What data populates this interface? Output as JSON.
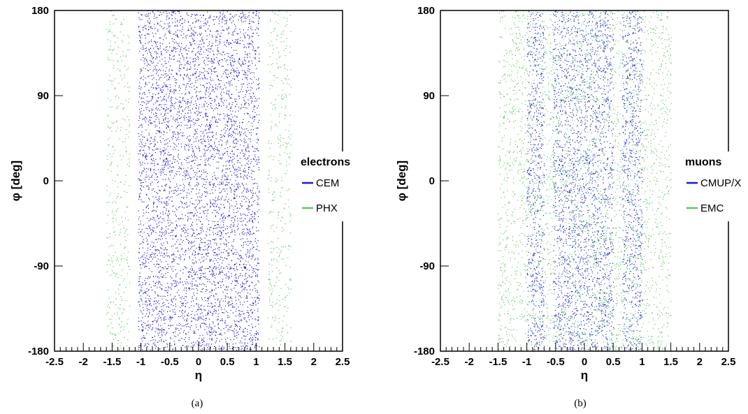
{
  "colors": {
    "blue": "#1a1adc",
    "green": "#5dc85d",
    "axis": "#000000"
  },
  "chart_data": [
    {
      "type": "scatter",
      "panel": "a",
      "caption": "(a)",
      "xlabel": "η",
      "ylabel": "φ [deg]",
      "xlim": [
        -2.5,
        2.5
      ],
      "ylim": [
        -180,
        180
      ],
      "x_ticks": [
        "-2.5",
        "-2",
        "-1.5",
        "-1",
        "-0.5",
        "0",
        "0.5",
        "1",
        "1.5",
        "2",
        "2.5"
      ],
      "y_ticks": [
        "-180",
        "-90",
        "0",
        "90",
        "180"
      ],
      "legend": {
        "title": "electrons",
        "position": "right"
      },
      "series": [
        {
          "name": "CEM",
          "color": "#1a1adc",
          "eta_ranges": [
            [
              -1.05,
              1.05
            ]
          ],
          "density": 1.0
        },
        {
          "name": "PHX",
          "color": "#5dc85d",
          "eta_ranges": [
            [
              -1.6,
              -1.2
            ],
            [
              1.2,
              1.6
            ]
          ],
          "density": 0.35
        }
      ]
    },
    {
      "type": "scatter",
      "panel": "b",
      "caption": "(b)",
      "xlabel": "η",
      "ylabel": "φ [deg]",
      "xlim": [
        -2.5,
        2.5
      ],
      "ylim": [
        -180,
        180
      ],
      "x_ticks": [
        "-2.5",
        "-2",
        "-1.5",
        "-1",
        "-0.5",
        "0",
        "0.5",
        "1",
        "1.5",
        "2",
        "2.5"
      ],
      "y_ticks": [
        "-180",
        "-90",
        "0",
        "90",
        "180"
      ],
      "legend": {
        "title": "muons",
        "position": "right"
      },
      "series": [
        {
          "name": "CMUP/X",
          "color": "#1a1adc",
          "eta_ranges": [
            [
              -1.0,
              -0.7
            ],
            [
              -0.55,
              0.5
            ],
            [
              0.65,
              1.0
            ]
          ],
          "density": 0.8
        },
        {
          "name": "EMC",
          "color": "#5dc85d",
          "eta_ranges": [
            [
              -1.5,
              1.5
            ]
          ],
          "density": 0.45
        }
      ]
    }
  ]
}
